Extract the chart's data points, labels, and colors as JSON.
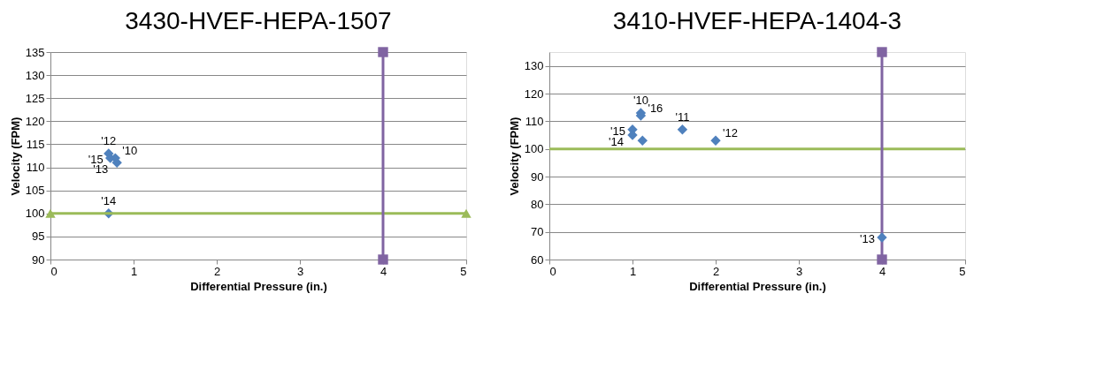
{
  "chart_data": [
    {
      "type": "scatter",
      "title": "3430-HVEF-HEPA-1507",
      "xlabel": "Differential Pressure (in.)",
      "ylabel": "Velocity (FPM)",
      "xlim": [
        0,
        5
      ],
      "xticks": [
        0,
        1,
        2,
        3,
        4,
        5
      ],
      "ylim": [
        90,
        135
      ],
      "yticks": [
        90,
        95,
        100,
        105,
        110,
        115,
        120,
        125,
        130,
        135
      ],
      "grid": "y",
      "series": [
        {
          "color": "#4f81bd",
          "marker": "diamond",
          "x": [
            0.7,
            0.72,
            0.78,
            0.8,
            0.7
          ],
          "values": [
            113,
            112,
            112,
            111,
            100
          ]
        },
        {
          "type": "line",
          "color": "#9bbb59",
          "marker": "triangle",
          "x": [
            0,
            5
          ],
          "values": [
            100,
            100
          ]
        },
        {
          "type": "line",
          "color": "#8064a2",
          "marker": "square",
          "x": [
            4,
            4
          ],
          "values": [
            90,
            135
          ]
        }
      ],
      "annotations": [
        {
          "text": "'12",
          "x": 0.7,
          "y": 113
        },
        {
          "text": "'10",
          "x": 0.78,
          "y": 112
        },
        {
          "text": "'15",
          "x": 0.72,
          "y": 112
        },
        {
          "text": "'13",
          "x": 0.8,
          "y": 111
        },
        {
          "text": "'14",
          "x": 0.7,
          "y": 100
        }
      ]
    },
    {
      "type": "scatter",
      "title": "3410-HVEF-HEPA-1404-3",
      "xlabel": "Differential Pressure (in.)",
      "ylabel": "Velocity (FPM)",
      "xlim": [
        0,
        5
      ],
      "xticks": [
        0,
        1,
        2,
        3,
        4,
        5
      ],
      "ylim": [
        60,
        135
      ],
      "yticks": [
        60,
        70,
        80,
        90,
        100,
        110,
        120,
        130
      ],
      "grid": "y",
      "series": [
        {
          "type": "line",
          "color": "#9bbb59",
          "marker": "none",
          "x": [
            0,
            5
          ],
          "values": [
            100,
            100
          ]
        },
        {
          "type": "line",
          "color": "#8064a2",
          "marker": "square",
          "x": [
            4,
            4
          ],
          "values": [
            60,
            135
          ]
        },
        {
          "color": "#4f81bd",
          "marker": "diamond",
          "x": [
            1.1,
            1.1,
            1.0,
            1.0,
            1.12,
            1.6,
            2.0,
            4.0
          ],
          "values": [
            113,
            112,
            107,
            105,
            103,
            107,
            103,
            68
          ]
        }
      ],
      "annotations": [
        {
          "text": "'10",
          "x": 1.1,
          "y": 113
        },
        {
          "text": "'16",
          "x": 1.1,
          "y": 112
        },
        {
          "text": "'15",
          "x": 1.0,
          "y": 107
        },
        {
          "text": "'14",
          "x": 1.0,
          "y": 105
        },
        {
          "text": "'11",
          "x": 1.6,
          "y": 107
        },
        {
          "text": "'12",
          "x": 2.0,
          "y": 103
        },
        {
          "text": "'13",
          "x": 4.0,
          "y": 68
        }
      ]
    }
  ]
}
